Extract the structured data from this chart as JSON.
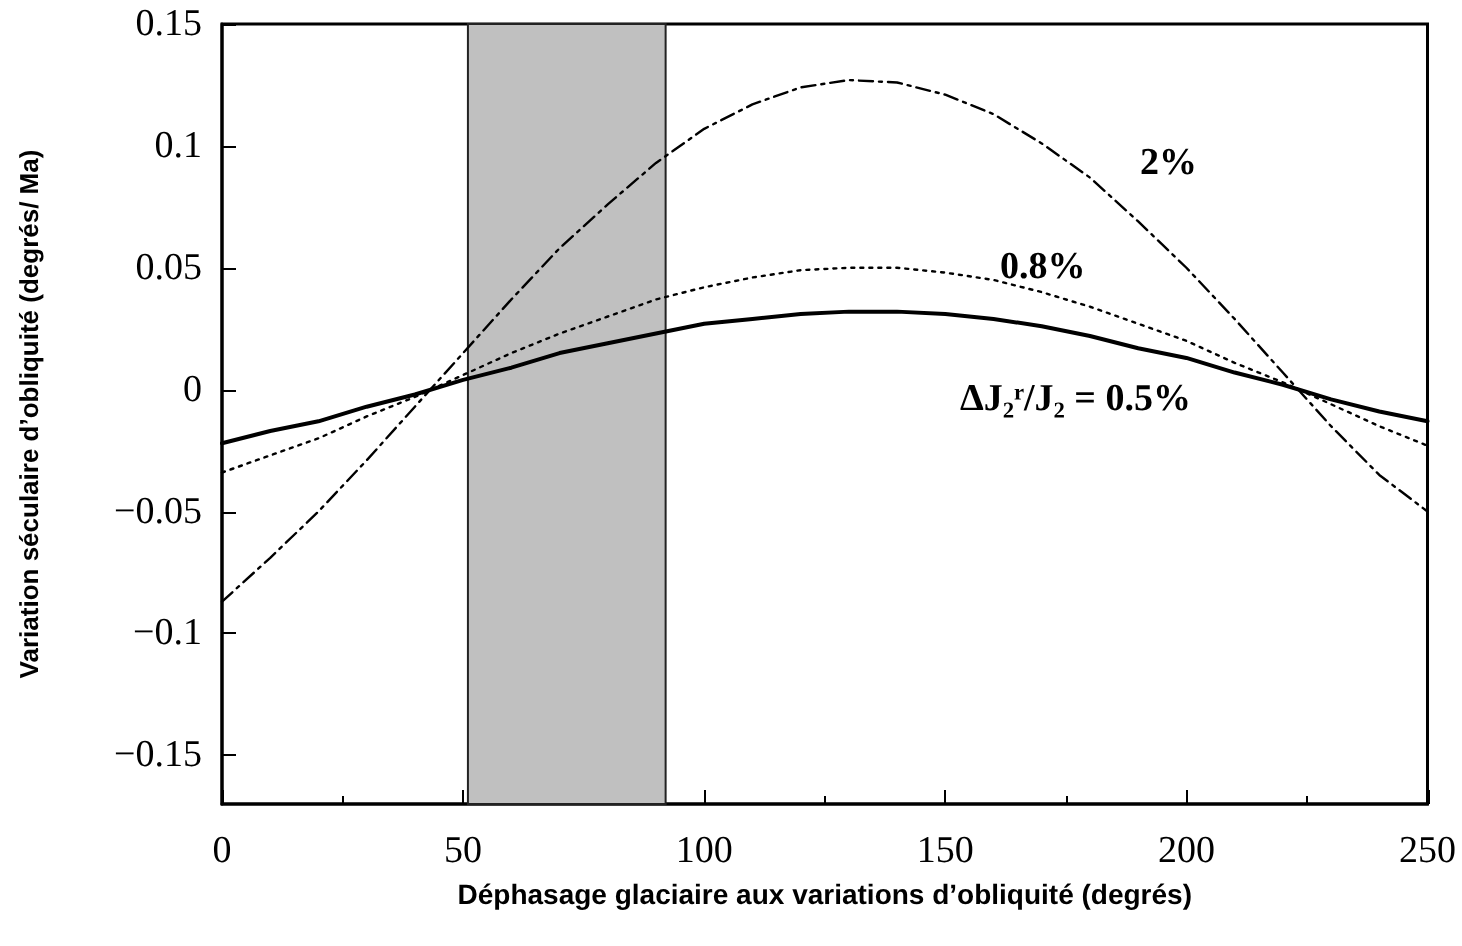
{
  "chart_data": {
    "type": "line",
    "xlabel": "Déphasage glaciaire aux variations d’obliquité (degrés)",
    "ylabel": "Variation séculaire d’obliquité (degrés/ Ma)",
    "x": [
      0,
      10,
      20,
      30,
      40,
      50,
      60,
      70,
      80,
      90,
      100,
      110,
      120,
      130,
      140,
      150,
      160,
      170,
      180,
      190,
      200,
      210,
      220,
      230,
      240,
      250
    ],
    "series": [
      {
        "color": "#000000",
        "line_style": "solid",
        "values": [
          -0.022,
          -0.017,
          -0.013,
          -0.007,
          -0.002,
          0.004,
          0.009,
          0.015,
          0.019,
          0.023,
          0.027,
          0.029,
          0.031,
          0.032,
          0.032,
          0.031,
          0.029,
          0.026,
          0.022,
          0.017,
          0.013,
          0.007,
          0.002,
          -0.004,
          -0.009,
          -0.013
        ]
      },
      {
        "color": "#000000",
        "line_style": "dotted",
        "values": [
          -0.034,
          -0.027,
          -0.02,
          -0.011,
          -0.003,
          0.006,
          0.015,
          0.023,
          0.03,
          0.037,
          0.042,
          0.046,
          0.049,
          0.05,
          0.05,
          0.048,
          0.045,
          0.04,
          0.034,
          0.027,
          0.02,
          0.011,
          0.003,
          -0.006,
          -0.015,
          -0.023
        ]
      },
      {
        "color": "#000000",
        "line_style": "dashed",
        "values": [
          -0.087,
          -0.069,
          -0.05,
          -0.029,
          -0.007,
          0.015,
          0.037,
          0.058,
          0.076,
          0.093,
          0.107,
          0.117,
          0.124,
          0.127,
          0.126,
          0.121,
          0.113,
          0.101,
          0.087,
          0.069,
          0.05,
          0.029,
          0.007,
          -0.015,
          -0.035,
          -0.05
        ]
      }
    ],
    "xlim": [
      0,
      250
    ],
    "xticks": [
      0,
      50,
      100,
      150,
      200,
      250
    ],
    "ylim": [
      -0.17,
      0.15
    ],
    "yticks": [
      -0.15,
      -0.1,
      -0.05,
      0,
      0.05,
      0.1,
      0.15
    ],
    "bands": [
      {
        "axis": "x",
        "from": 51,
        "to": 92,
        "color": "#c0c0c0"
      }
    ],
    "annotations": [
      "2%",
      "0.8%",
      "ΔJ₂ʳ/J₂ = 0.5%"
    ],
    "grid": false,
    "marker": "none"
  }
}
